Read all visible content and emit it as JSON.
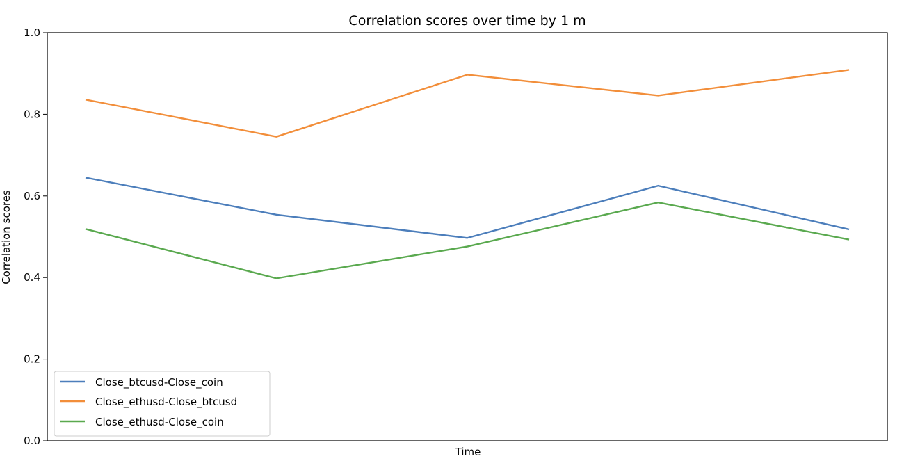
{
  "chart_data": {
    "type": "line",
    "title": "Correlation scores over time by 1 m",
    "xlabel": "Time",
    "ylabel": "Correlation scores",
    "ylim": [
      0.0,
      1.0
    ],
    "yticks": [
      "0.0",
      "0.2",
      "0.4",
      "0.6",
      "0.8",
      "1.0"
    ],
    "x": [
      1,
      2,
      3,
      4,
      5
    ],
    "grid": false,
    "legend_position": "lower-left",
    "series": [
      {
        "name": "Close_btcusd-Close_coin",
        "color": "#4c7ebb",
        "values": [
          0.645,
          0.554,
          0.497,
          0.625,
          0.518
        ]
      },
      {
        "name": "Close_ethusd-Close_btcusd",
        "color": "#f28e3a",
        "values": [
          0.836,
          0.745,
          0.897,
          0.846,
          0.909
        ]
      },
      {
        "name": "Close_ethusd-Close_coin",
        "color": "#5aa94f",
        "values": [
          0.519,
          0.398,
          0.476,
          0.584,
          0.493
        ]
      }
    ]
  }
}
